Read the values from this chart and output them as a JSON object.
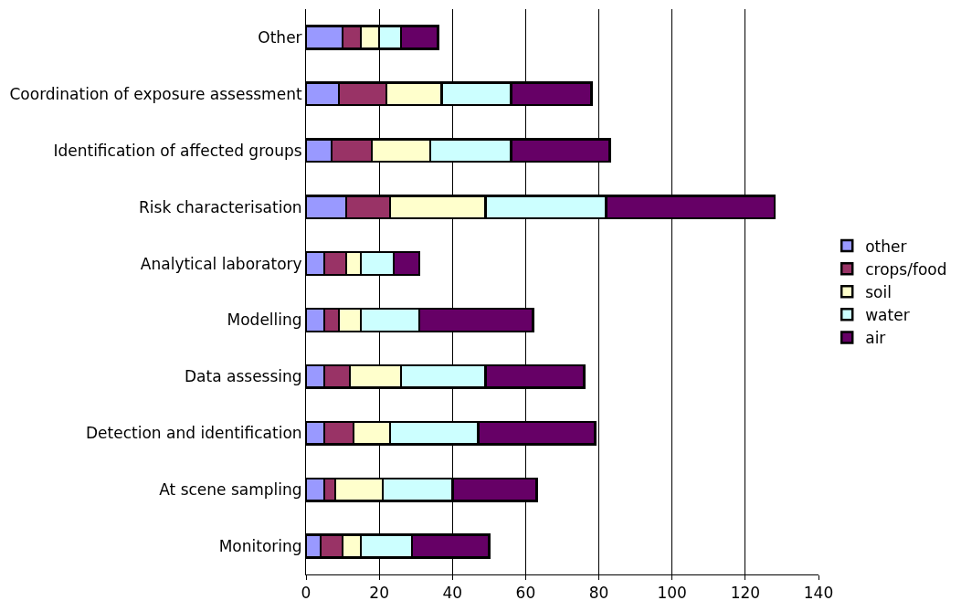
{
  "chart_data": {
    "type": "bar",
    "orientation": "horizontal",
    "stacked": true,
    "categories": [
      "Other",
      "Coordination of exposure assessment",
      "Identification of affected groups",
      "Risk characterisation",
      "Analytical laboratory",
      "Modelling",
      "Data assessing",
      "Detection and identification",
      "At scene sampling",
      "Monitoring"
    ],
    "series": [
      {
        "name": "other",
        "color": "#9999ff",
        "values": [
          10,
          9,
          7,
          11,
          5,
          5,
          5,
          5,
          5,
          4
        ]
      },
      {
        "name": "crops/food",
        "color": "#993366",
        "values": [
          5,
          13,
          11,
          12,
          6,
          4,
          7,
          8,
          3,
          6
        ]
      },
      {
        "name": "soil",
        "color": "#ffffcc",
        "values": [
          5,
          15,
          16,
          26,
          4,
          6,
          14,
          10,
          13,
          5
        ]
      },
      {
        "name": "water",
        "color": "#ccffff",
        "values": [
          6,
          19,
          22,
          33,
          9,
          16,
          23,
          24,
          19,
          14
        ]
      },
      {
        "name": "air",
        "color": "#660066",
        "values": [
          10,
          22,
          27,
          46,
          7,
          31,
          27,
          32,
          23,
          21
        ]
      }
    ],
    "xlim": [
      0,
      140
    ],
    "xticks": [
      0,
      20,
      40,
      60,
      80,
      100,
      120,
      140
    ],
    "grid": "x",
    "legend": "right"
  }
}
